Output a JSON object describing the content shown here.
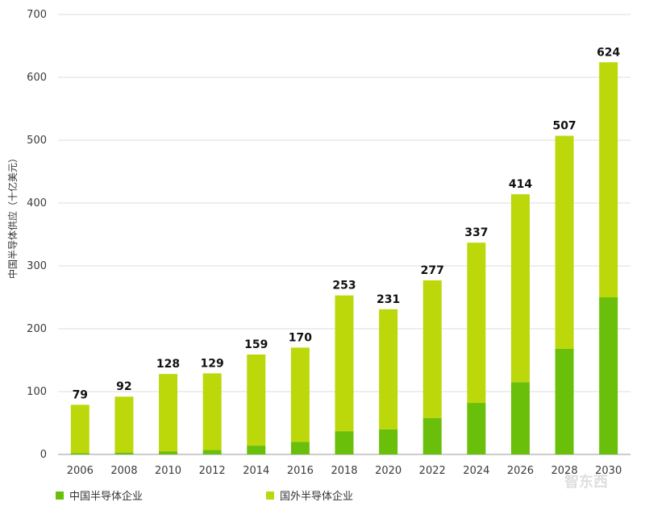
{
  "chart_data": {
    "type": "bar",
    "stacked": true,
    "title": "",
    "xlabel": "",
    "ylabel": "中国半导体供应（十亿美元）",
    "ylim": [
      0,
      700
    ],
    "yticks": [
      0,
      100,
      200,
      300,
      400,
      500,
      600,
      700
    ],
    "categories": [
      "2006",
      "2008",
      "2010",
      "2012",
      "2014",
      "2016",
      "2018",
      "2020",
      "2022",
      "2024",
      "2026",
      "2028",
      "2030"
    ],
    "series": [
      {
        "name": "中国半导体企业",
        "color": "#6abf0a",
        "values": [
          2,
          3,
          5,
          7,
          14,
          20,
          37,
          40,
          58,
          82,
          115,
          168,
          250
        ]
      },
      {
        "name": "国外半导体企业",
        "color": "#bcd80a",
        "values": [
          77,
          89,
          123,
          122,
          145,
          150,
          216,
          191,
          219,
          255,
          299,
          339,
          374
        ]
      }
    ],
    "totals": [
      79,
      92,
      128,
      129,
      159,
      170,
      253,
      231,
      277,
      337,
      414,
      507,
      624
    ],
    "grid": true,
    "legend": "bottom-left"
  },
  "watermark": "智东西"
}
